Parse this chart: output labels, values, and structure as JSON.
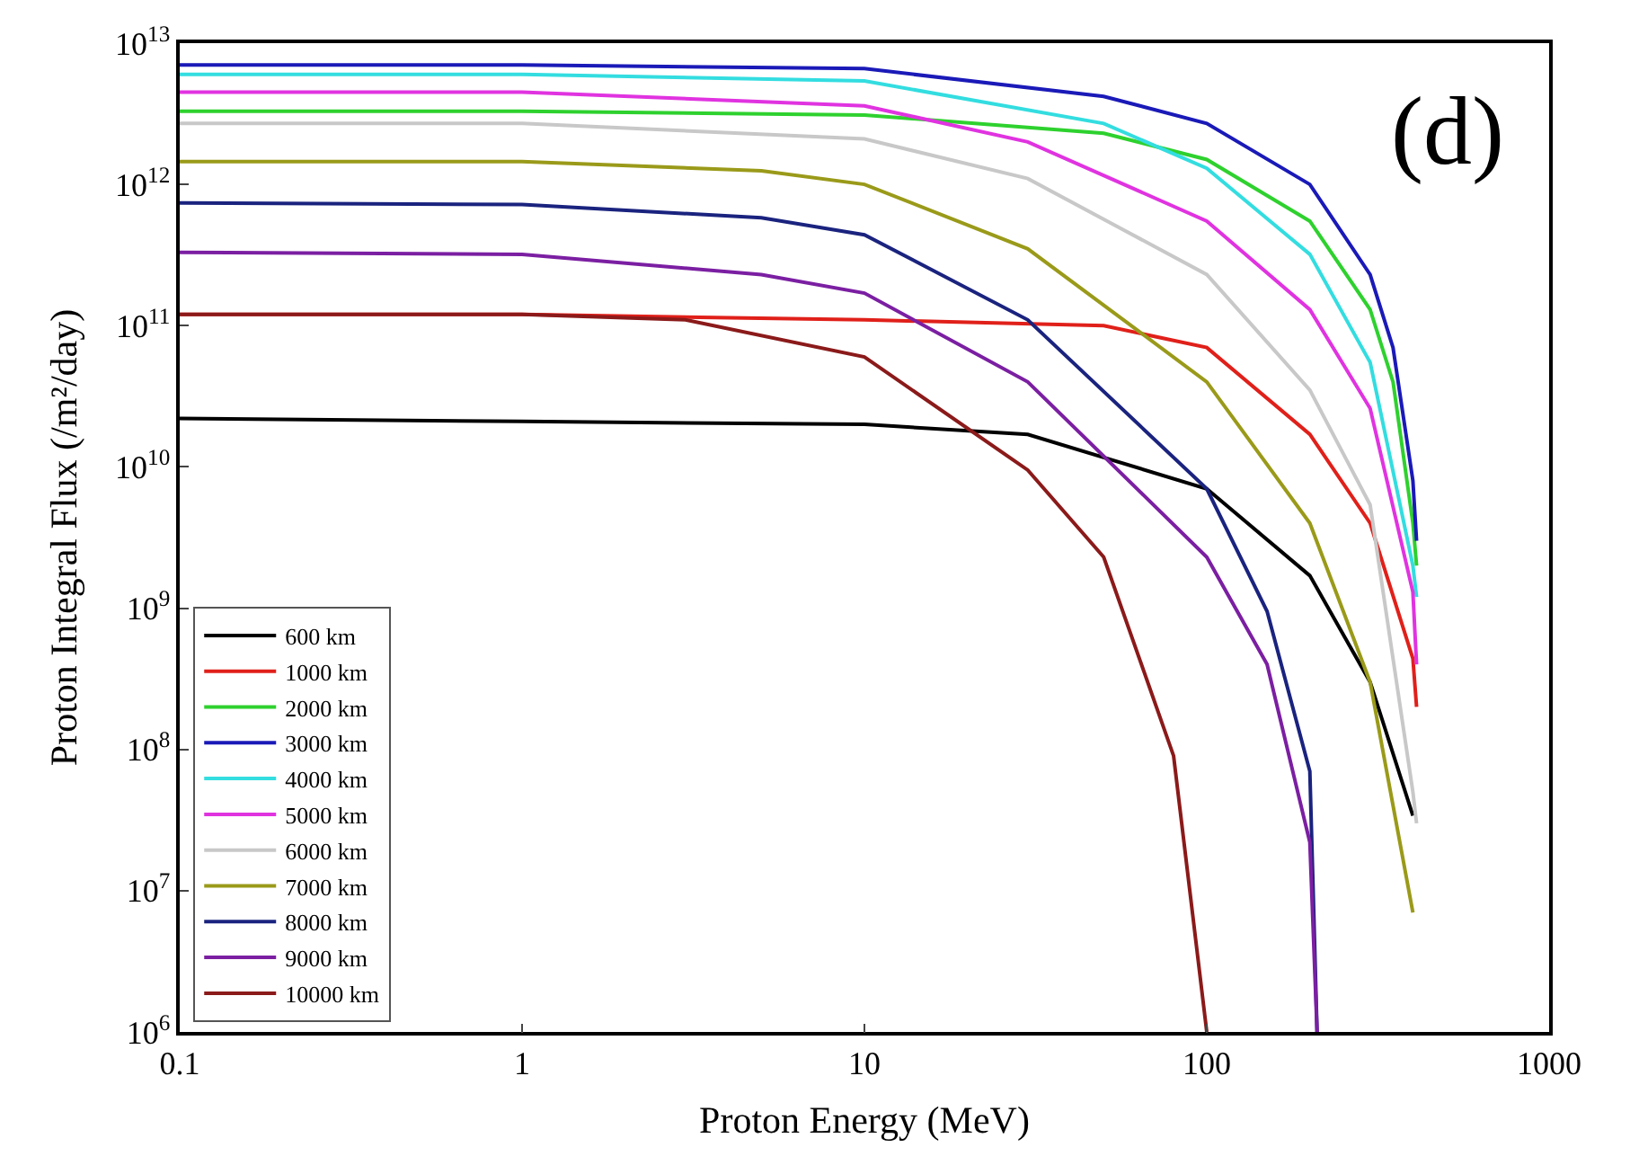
{
  "chart_data": {
    "type": "line",
    "xlabel": "Proton Energy (MeV)",
    "ylabel": "Proton Integral Flux (/m²/day)",
    "log": "xy",
    "legend": "bottom left",
    "marker": "none",
    "line_style": "solid",
    "xlim": [
      0.1,
      1000
    ],
    "ylim": [
      1000000.0,
      10000000000000.0
    ],
    "xticks": [
      0.1,
      1,
      10,
      100,
      1000
    ],
    "yticks": [
      {
        "value": 1000000.0,
        "label": "10$^{6}$"
      },
      {
        "value": 10000000.0,
        "label": "10$^{7}$"
      },
      {
        "value": 100000000.0,
        "label": "10$^{8}$"
      },
      {
        "value": 1000000000.0,
        "label": "10$^{9}$"
      },
      {
        "value": 10000000000.0,
        "label": "10$^{10}$"
      },
      {
        "value": 100000000000.0,
        "label": "10$^{11}$"
      },
      {
        "value": 1000000000000.0,
        "label": "10$^{12}$"
      },
      {
        "value": 10000000000000.0,
        "label": "10$^{13}$"
      }
    ],
    "annotations": [
      "(d)"
    ],
    "series": [
      {
        "name": "600 km",
        "color": "#000000",
        "x": [
          0.1,
          1,
          10,
          30,
          100,
          200,
          300,
          400
        ],
        "values": [
          22000000000.0,
          21000000000.0,
          20000000000.0,
          17000000000.0,
          7000000000.0,
          1700000000.0,
          300000000.0,
          34000000.0
        ]
      },
      {
        "name": "1000 km",
        "color": "#e0201a",
        "x": [
          0.1,
          1,
          10,
          50,
          100,
          200,
          300,
          400,
          410
        ],
        "values": [
          120000000000.0,
          120000000000.0,
          110000000000.0,
          100000000000.0,
          70000000000.0,
          17000000000.0,
          4000000000.0,
          440000000.0,
          200000000.0
        ]
      },
      {
        "name": "2000 km",
        "color": "#2ed12e",
        "x": [
          0.1,
          1,
          10,
          50,
          100,
          200,
          300,
          350,
          400,
          410
        ],
        "values": [
          3300000000000.0,
          3300000000000.0,
          3100000000000.0,
          2300000000000.0,
          1500000000000.0,
          550000000000.0,
          130000000000.0,
          40000000000.0,
          4000000000.0,
          2000000000.0
        ]
      },
      {
        "name": "3000 km",
        "color": "#1a1ab8",
        "x": [
          0.1,
          1,
          10,
          50,
          100,
          200,
          300,
          350,
          400,
          410
        ],
        "values": [
          7000000000000.0,
          7000000000000.0,
          6600000000000.0,
          4200000000000.0,
          2700000000000.0,
          1000000000000.0,
          230000000000.0,
          70000000000.0,
          8000000000.0,
          3000000000.0
        ]
      },
      {
        "name": "4000 km",
        "color": "#33dde0",
        "x": [
          0.1,
          1,
          10,
          50,
          100,
          200,
          300,
          400,
          410
        ],
        "values": [
          6000000000000.0,
          6000000000000.0,
          5400000000000.0,
          2700000000000.0,
          1300000000000.0,
          320000000000.0,
          55000000000.0,
          2000000000.0,
          1200000000.0
        ]
      },
      {
        "name": "5000 km",
        "color": "#e033e0",
        "x": [
          0.1,
          1,
          10,
          30,
          100,
          200,
          300,
          400,
          410
        ],
        "values": [
          4500000000000.0,
          4500000000000.0,
          3600000000000.0,
          2000000000000.0,
          550000000000.0,
          130000000000.0,
          26000000000.0,
          1300000000.0,
          400000000.0
        ]
      },
      {
        "name": "6000 km",
        "color": "#c8c8c8",
        "x": [
          0.1,
          1,
          10,
          30,
          100,
          200,
          300,
          400,
          410
        ],
        "values": [
          2700000000000.0,
          2700000000000.0,
          2100000000000.0,
          1100000000000.0,
          230000000000.0,
          35000000000.0,
          5400000000.0,
          50000000.0,
          30000000.0
        ]
      },
      {
        "name": "7000 km",
        "color": "#9a9a1a",
        "x": [
          0.1,
          1,
          5,
          10,
          30,
          100,
          200,
          300,
          400
        ],
        "values": [
          1450000000000.0,
          1450000000000.0,
          1250000000000.0,
          1000000000000.0,
          350000000000.0,
          40000000000.0,
          4000000000.0,
          300000000.0,
          7000000.0
        ]
      },
      {
        "name": "8000 km",
        "color": "#1a237e",
        "x": [
          0.1,
          1,
          5,
          10,
          30,
          100,
          150,
          200,
          210
        ],
        "values": [
          740000000000.0,
          720000000000.0,
          580000000000.0,
          440000000000.0,
          110000000000.0,
          7000000000.0,
          950000000.0,
          70000000.0,
          1000000.0
        ]
      },
      {
        "name": "9000 km",
        "color": "#7b1fa2",
        "x": [
          0.1,
          1,
          5,
          10,
          30,
          100,
          150,
          200,
          210
        ],
        "values": [
          330000000000.0,
          320000000000.0,
          230000000000.0,
          170000000000.0,
          40000000000.0,
          2300000000.0,
          400000000.0,
          22000000.0,
          1000000.0
        ]
      },
      {
        "name": "10000 km",
        "color": "#8b1a1a",
        "x": [
          0.1,
          1,
          3,
          10,
          30,
          50,
          80,
          100
        ],
        "values": [
          120000000000.0,
          120000000000.0,
          110000000000.0,
          60000000000.0,
          9500000000.0,
          2300000000.0,
          90000000.0,
          1000000.0
        ]
      }
    ]
  }
}
